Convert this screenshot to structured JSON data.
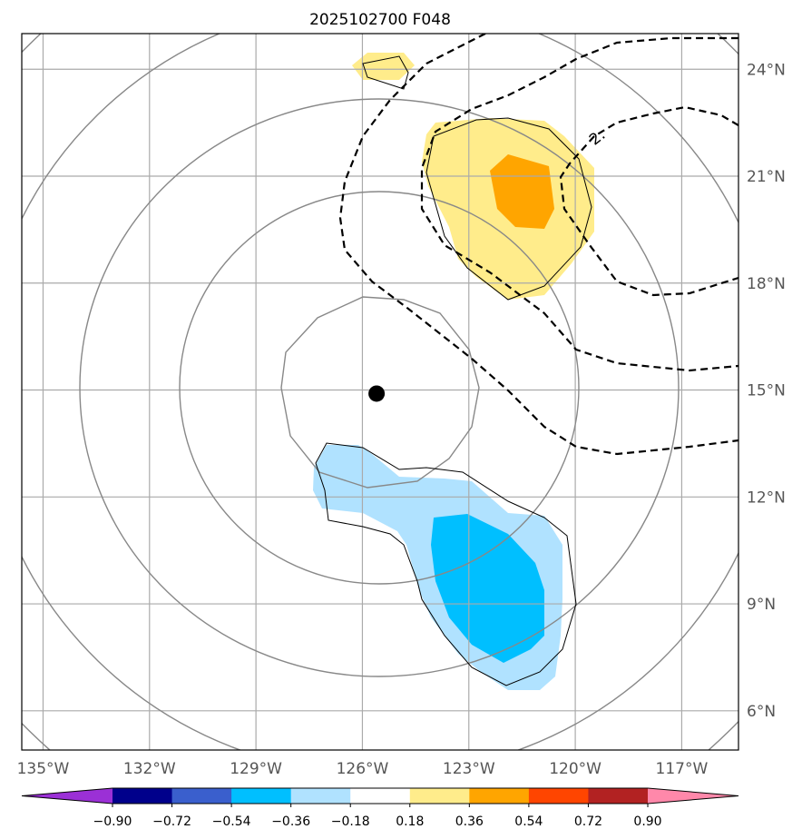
{
  "title": "2025102700 F048",
  "map": {
    "lon_range": [
      -135.6,
      -115.4
    ],
    "lat_range": [
      4.9,
      25.0
    ],
    "lon_ticks": [
      -135,
      -132,
      -129,
      -126,
      -123,
      -120,
      -117
    ],
    "lon_tick_labels": [
      "135°W",
      "132°W",
      "129°W",
      "126°W",
      "123°W",
      "120°W",
      "117°W"
    ],
    "lat_ticks": [
      6,
      9,
      12,
      15,
      18,
      21,
      24
    ],
    "lat_tick_labels": [
      "6°N",
      "9°N",
      "12°N",
      "15°N",
      "18°N",
      "21°N",
      "24°N"
    ],
    "grid": true,
    "storm_center": {
      "lon": -125.6,
      "lat": 14.9
    },
    "dashed_contour_label": "2."
  },
  "colorbar": {
    "tick_labels": [
      "−0.90",
      "−0.72",
      "−0.54",
      "−0.36",
      "−0.18",
      "0.18",
      "0.36",
      "0.54",
      "0.72",
      "0.90"
    ],
    "colors": [
      "#9b30d6",
      "#00008b",
      "#3a5fcd",
      "#00bfff",
      "#b0e2ff",
      "#ffffff",
      "#ffec8b",
      "#ffa500",
      "#ff4500",
      "#b22222",
      "#ff88aa"
    ],
    "extend": "both"
  }
}
